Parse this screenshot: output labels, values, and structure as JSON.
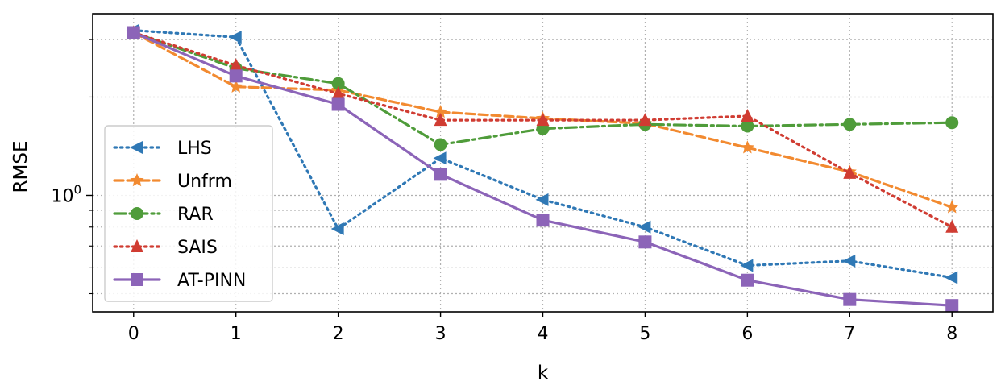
{
  "chart_data": {
    "type": "line",
    "xlabel": "k",
    "ylabel": "RMSE",
    "yscale": "log",
    "x": [
      0,
      1,
      2,
      3,
      4,
      5,
      6,
      7,
      8
    ],
    "xlim": [
      -0.4,
      8.4
    ],
    "ylim": [
      0.44,
      3.6
    ],
    "y_tick_label": "10",
    "y_tick_exponent": "0",
    "grid": true,
    "legend_position": "center-left",
    "series": [
      {
        "name": "LHS",
        "color": "#2f78b5",
        "marker": "triangle-left",
        "linestyle": "dotted",
        "values": [
          3.2,
          3.05,
          0.79,
          1.3,
          0.97,
          0.8,
          0.61,
          0.63,
          0.56
        ]
      },
      {
        "name": "Unfrm",
        "color": "#f28a30",
        "marker": "star",
        "linestyle": "dashed",
        "values": [
          3.15,
          2.15,
          2.1,
          1.8,
          1.72,
          1.66,
          1.4,
          1.18,
          0.92
        ]
      },
      {
        "name": "RAR",
        "color": "#4f9c3a",
        "marker": "circle",
        "linestyle": "dashdot",
        "values": [
          3.15,
          2.45,
          2.2,
          1.43,
          1.6,
          1.65,
          1.63,
          1.65,
          1.67
        ]
      },
      {
        "name": "SAIS",
        "color": "#d03c32",
        "marker": "triangle-up",
        "linestyle": "dotted",
        "values": [
          3.15,
          2.5,
          2.05,
          1.7,
          1.7,
          1.7,
          1.75,
          1.17,
          0.8
        ]
      },
      {
        "name": "AT-PINN",
        "color": "#8c64b8",
        "marker": "square",
        "linestyle": "solid",
        "values": [
          3.15,
          2.32,
          1.9,
          1.16,
          0.84,
          0.72,
          0.55,
          0.48,
          0.46
        ]
      }
    ]
  }
}
